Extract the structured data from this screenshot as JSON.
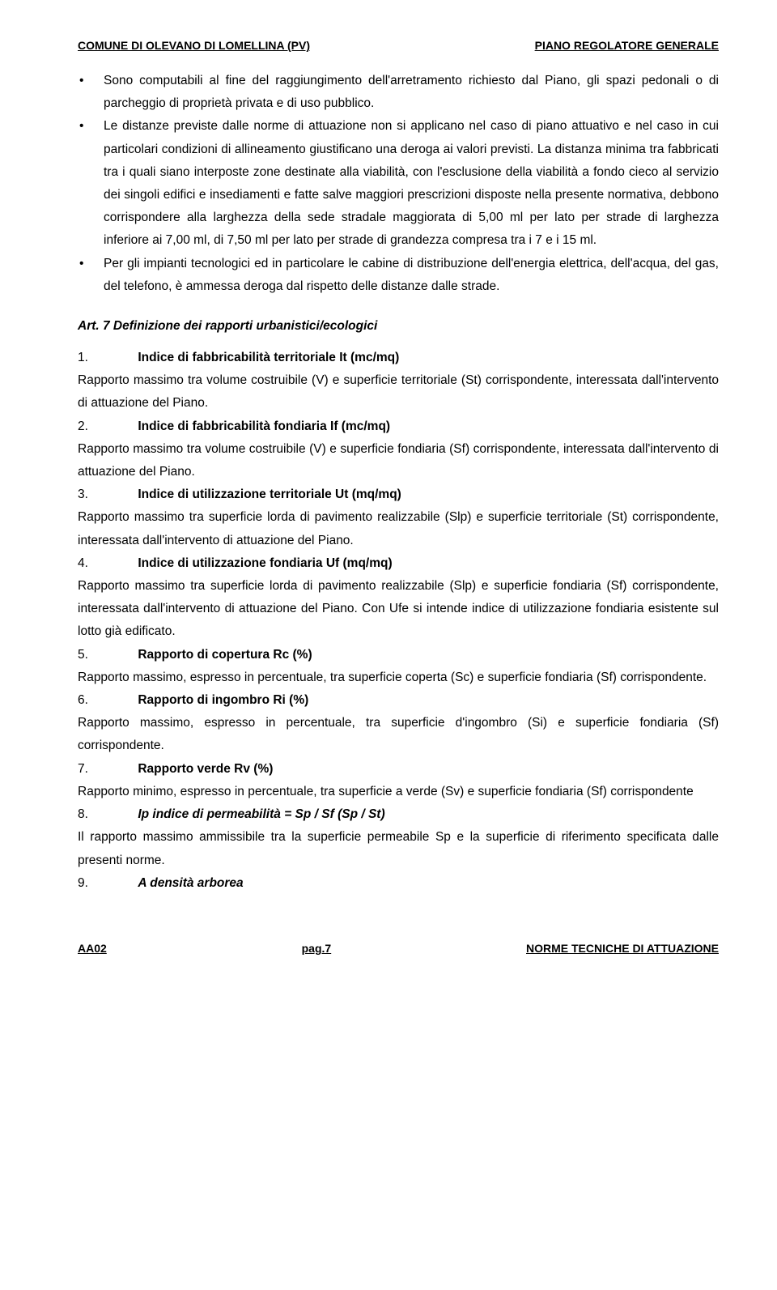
{
  "header": {
    "left": "COMUNE DI OLEVANO DI LOMELLINA (PV)",
    "right": "PIANO REGOLATORE GENERALE"
  },
  "bullets": [
    "Sono  computabili al fine del  raggiungimento  dell'arretramento richiesto dal Piano,  gli spazi pedonali o di parcheggio di proprietà privata e di uso pubblico.",
    "Le  distanze  previste  dalle  norme di  attuazione  non  si applicano  nel  caso di piano attuativo e nel  caso  in  cui particolari  condizioni  di  allineamento  giustificano una deroga ai  valori  previsti. La distanza minima tra fabbricati tra i quali siano interposte zone destinate alla viabilità, con l'esclusione della viabilità a fondo cieco al servizio dei singoli edifici e insediamenti e fatte salve maggiori prescrizioni disposte nella presente normativa, debbono corrispondere alla larghezza della sede stradale maggiorata di 5,00 ml per lato per strade di larghezza inferiore ai 7,00 ml, di 7,50 ml per lato per strade di grandezza compresa tra i 7 e i 15 ml.",
    "Per gli impianti tecnologici ed in particolare le cabine di distribuzione dell'energia elettrica, dell'acqua, del gas, del telefono, è ammessa deroga dal rispetto delle distanze dalle strade."
  ],
  "art7": {
    "title": "Art. 7 Definizione dei rapporti urbanistici/ecologici",
    "items": [
      {
        "num": "1.",
        "label": "Indice di fabbricabilità territoriale It (mc/mq)",
        "body": "Rapporto massimo tra volume costruibile (V) e superficie territoriale  (St) corrispondente,  interessata dall'intervento di attuazione del Piano."
      },
      {
        "num": "2.",
        "label": "Indice di fabbricabilità fondiaria  If (mc/mq)",
        "body": "Rapporto  massimo  tra volume costruibile (V)  e  superficie fondiaria (Sf)  corrispondente, interessata dall'intervento di attuazione del Piano."
      },
      {
        "num": "3.",
        "label": "Indice di utilizzazione territoriale Ut (mq/mq)",
        "body": "Rapporto   massimo   tra  superficie  lorda   di   pavimento realizzabile   (Slp)   e   superficie   territoriale (St) corrispondente, interessata  dall'intervento  di  attuazione del Piano."
      },
      {
        "num": "4.",
        "label": "Indice di utilizzazione fondiaria  Uf (mq/mq)",
        "body": "Rapporto   massimo   tra  superficie  lorda   di   pavimento realizzabile   (Slp)  e  superficie  fondiaria  (Sf)    corrispondente, interessata  dall'intervento  di  attuazione  del Piano. Con Ufe si intende indice di utilizzazione fondiaria esistente sul lotto già edificato."
      },
      {
        "num": "5.",
        "label": "Rapporto di copertura Rc (%)",
        "body": "Rapporto  massimo,  espresso in percentuale,  tra superficie coperta (Sc) e superficie fondiaria (Sf) corrispondente."
      },
      {
        "num": "6.",
        "label": "Rapporto di ingombro  Ri (%)",
        "body": "Rapporto massimo,  espresso in percentuale,  tra  superficie d'ingombro (Si) e superficie fondiaria (Sf) corrispondente."
      },
      {
        "num": "7.",
        "label": "Rapporto verde Rv (%)",
        "body": "Rapporto minimo,  espresso in percentuale,  tra  superficie a verde (Sv) e superficie fondiaria (Sf) corrispondente"
      },
      {
        "num": "8.",
        "label": "Ip indice di permeabilità = Sp / Sf (Sp / St)",
        "body": "Il  rapporto  massimo  ammissibile  tra  la  superficie  permeabile  Sp  e  la  superficie  di  riferimento specificata dalle presenti norme."
      },
      {
        "num": "9.",
        "label": "A densità arborea",
        "body": ""
      }
    ]
  },
  "footer": {
    "left": "AA02",
    "center": "pag.7",
    "right": "NORME TECNICHE DI ATTUAZIONE"
  }
}
